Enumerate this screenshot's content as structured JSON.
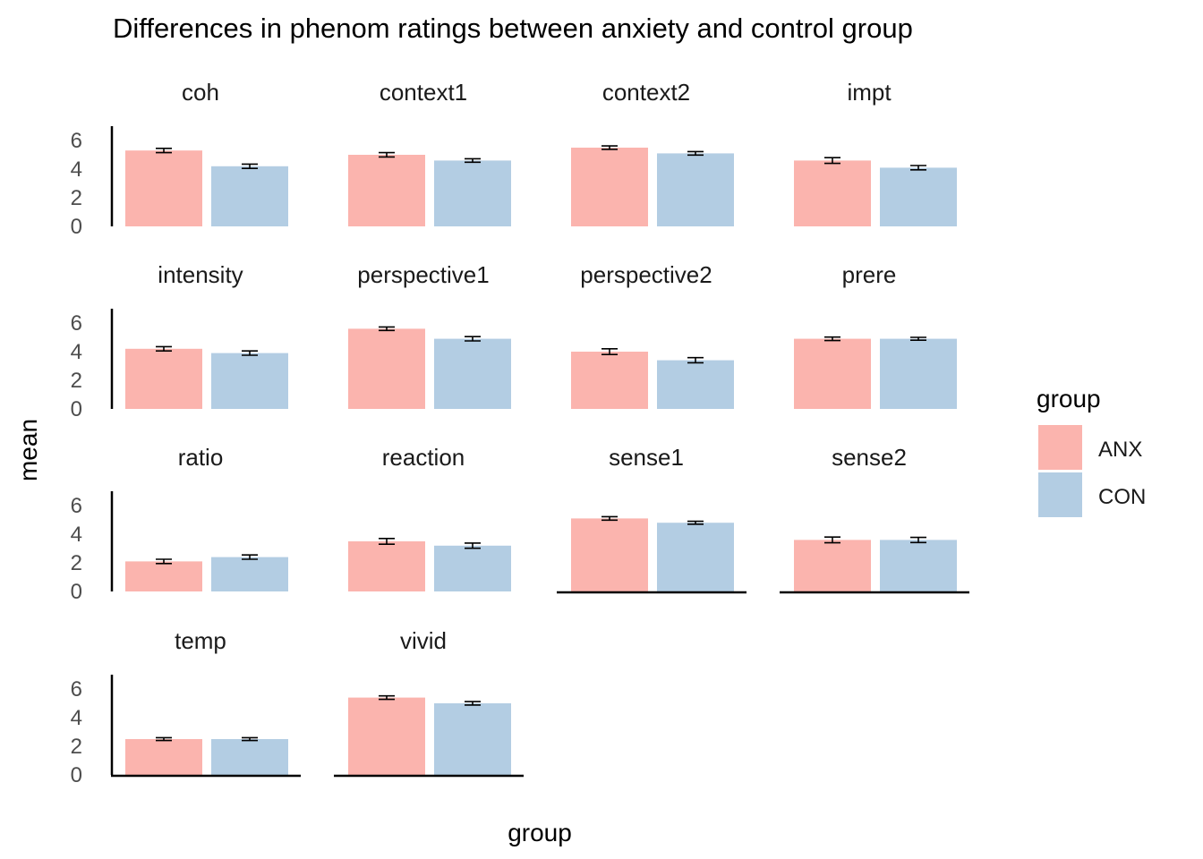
{
  "chart_data": {
    "type": "bar",
    "title": "Differences in phenom ratings between anxiety and control group",
    "xlabel": "group",
    "ylabel": "mean",
    "ylim": [
      0,
      7
    ],
    "yticks": [
      0,
      2,
      4,
      6
    ],
    "grid": false,
    "legend": {
      "title": "group",
      "placement": "right",
      "entries": [
        {
          "label": "ANX",
          "color": "#FBB4AE"
        },
        {
          "label": "CON",
          "color": "#B3CDE3"
        }
      ]
    },
    "categories": [
      "ANX",
      "CON"
    ],
    "facets": [
      {
        "name": "coh",
        "values": [
          5.3,
          4.2
        ],
        "errors": [
          0.15,
          0.15
        ]
      },
      {
        "name": "context1",
        "values": [
          5.0,
          4.6
        ],
        "errors": [
          0.15,
          0.12
        ]
      },
      {
        "name": "context2",
        "values": [
          5.5,
          5.1
        ],
        "errors": [
          0.12,
          0.12
        ]
      },
      {
        "name": "impt",
        "values": [
          4.6,
          4.1
        ],
        "errors": [
          0.2,
          0.15
        ]
      },
      {
        "name": "intensity",
        "values": [
          4.2,
          3.9
        ],
        "errors": [
          0.15,
          0.15
        ]
      },
      {
        "name": "perspective1",
        "values": [
          5.6,
          4.9
        ],
        "errors": [
          0.12,
          0.15
        ]
      },
      {
        "name": "perspective2",
        "values": [
          4.0,
          3.4
        ],
        "errors": [
          0.2,
          0.18
        ]
      },
      {
        "name": "prere",
        "values": [
          4.9,
          4.9
        ],
        "errors": [
          0.12,
          0.1
        ]
      },
      {
        "name": "ratio",
        "values": [
          2.1,
          2.4
        ],
        "errors": [
          0.15,
          0.15
        ]
      },
      {
        "name": "reaction",
        "values": [
          3.5,
          3.2
        ],
        "errors": [
          0.2,
          0.18
        ]
      },
      {
        "name": "sense1",
        "values": [
          5.1,
          4.8
        ],
        "errors": [
          0.12,
          0.1
        ]
      },
      {
        "name": "sense2",
        "values": [
          3.6,
          3.6
        ],
        "errors": [
          0.2,
          0.18
        ]
      },
      {
        "name": "temp",
        "values": [
          2.5,
          2.5
        ],
        "errors": [
          0.1,
          0.1
        ]
      },
      {
        "name": "vivid",
        "values": [
          5.4,
          5.0
        ],
        "errors": [
          0.12,
          0.12
        ]
      }
    ]
  }
}
